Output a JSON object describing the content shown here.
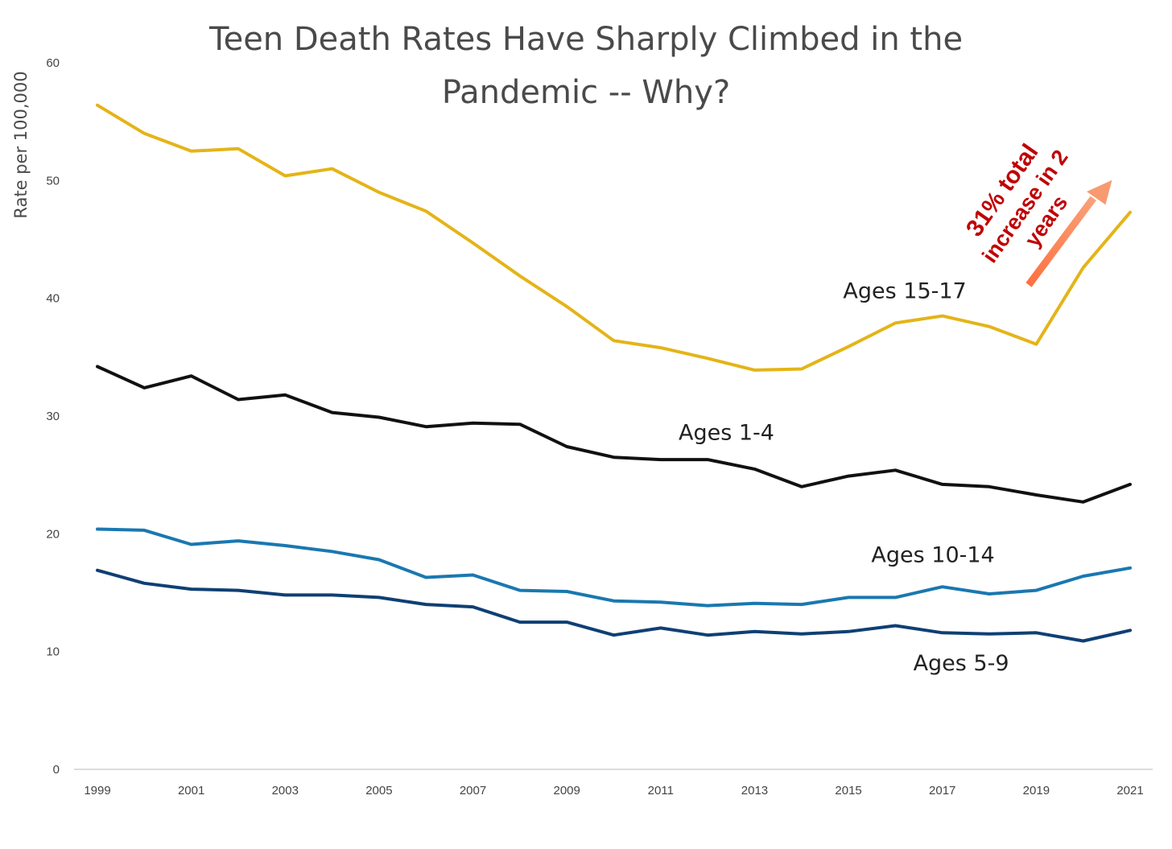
{
  "chart_data": {
    "type": "line",
    "title_lines": [
      "Teen Death Rates Have Sharply Climbed in the",
      "Pandemic -- Why?"
    ],
    "ylabel": "Rate per 100,000",
    "xlabel": "",
    "ylim": [
      0,
      60
    ],
    "y_ticks": [
      0,
      10,
      20,
      30,
      40,
      50,
      60
    ],
    "x_ticks": [
      1999,
      2001,
      2003,
      2005,
      2007,
      2009,
      2011,
      2013,
      2015,
      2017,
      2019,
      2021
    ],
    "x": [
      1999,
      2000,
      2001,
      2002,
      2003,
      2004,
      2005,
      2006,
      2007,
      2008,
      2009,
      2010,
      2011,
      2012,
      2013,
      2014,
      2015,
      2016,
      2017,
      2018,
      2019,
      2020,
      2021
    ],
    "grid": false,
    "legend": "none",
    "series": [
      {
        "name": "Ages 15-17",
        "color": "#e4b418",
        "values": [
          56.4,
          54.0,
          52.5,
          52.7,
          50.4,
          51.0,
          49.0,
          47.4,
          44.7,
          41.9,
          39.3,
          36.4,
          35.8,
          34.9,
          33.9,
          34.0,
          35.9,
          37.9,
          38.5,
          37.6,
          36.1,
          42.6,
          47.3
        ]
      },
      {
        "name": "Ages 1-4",
        "color": "#111111",
        "values": [
          34.2,
          32.4,
          33.4,
          31.4,
          31.8,
          30.3,
          29.9,
          29.1,
          29.4,
          29.3,
          27.4,
          26.5,
          26.3,
          26.3,
          25.5,
          24.0,
          24.9,
          25.4,
          24.2,
          24.0,
          23.3,
          22.7,
          24.2
        ]
      },
      {
        "name": "Ages 10-14",
        "color": "#1a78b0",
        "values": [
          20.4,
          20.3,
          19.1,
          19.4,
          19.0,
          18.5,
          17.8,
          16.3,
          16.5,
          15.2,
          15.1,
          14.3,
          14.2,
          13.9,
          14.1,
          14.0,
          14.6,
          14.6,
          15.5,
          14.9,
          15.2,
          16.4,
          17.1
        ]
      },
      {
        "name": "Ages 5-9",
        "color": "#0f3f74",
        "values": [
          16.9,
          15.8,
          15.3,
          15.2,
          14.8,
          14.8,
          14.6,
          14.0,
          13.8,
          12.5,
          12.5,
          11.4,
          12.0,
          11.4,
          11.7,
          11.5,
          11.7,
          12.2,
          11.6,
          11.5,
          11.6,
          10.9,
          11.8
        ]
      }
    ],
    "annotation": {
      "lines": [
        "31% total",
        "increase in 2",
        "years"
      ],
      "color": "#c00000",
      "arrow_color": "#f4855a"
    }
  }
}
